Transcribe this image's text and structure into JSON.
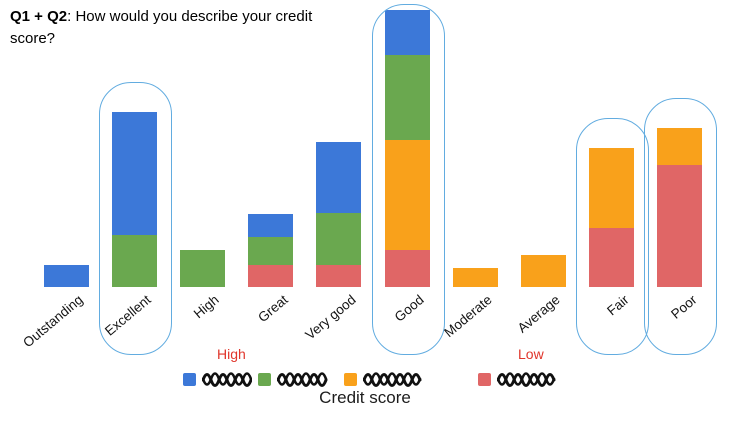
{
  "title": {
    "bold": "Q1 + Q2",
    "rest": ": How would you describe your credit score?"
  },
  "annotations": {
    "high_label": "High",
    "low_label": "Low",
    "annotation_color": "#e0352b"
  },
  "axis": {
    "x_title": "Credit score"
  },
  "chart_data": {
    "type": "bar",
    "stacked": true,
    "title": "Q1 + Q2: How would you describe your credit score?",
    "xlabel": "Credit score",
    "ylabel": "",
    "y_axis_shown": false,
    "values_unit": "relative bar height (no y-axis ticks visible in screenshot)",
    "categories": [
      "Outstanding",
      "Excellent",
      "High",
      "Great",
      "Very good",
      "Good",
      "Moderate",
      "Average",
      "Fair",
      "Poor"
    ],
    "series": [
      {
        "name": "series-red (legend label scribbled out)",
        "color": "#E06666",
        "values": [
          0,
          0,
          0,
          22,
          22,
          37,
          0,
          0,
          59,
          122
        ]
      },
      {
        "name": "series-orange (legend label scribbled out)",
        "color": "#F9A11B",
        "values": [
          0,
          0,
          0,
          0,
          0,
          110,
          19,
          32,
          80,
          37
        ]
      },
      {
        "name": "series-green (legend label scribbled out)",
        "color": "#6AA84F",
        "values": [
          0,
          52,
          37,
          28,
          52,
          85,
          0,
          0,
          0,
          0
        ]
      },
      {
        "name": "series-blue (legend label scribbled out)",
        "color": "#3C78D8",
        "values": [
          22,
          123,
          0,
          23,
          71,
          45,
          0,
          0,
          0,
          0
        ]
      }
    ],
    "stack_order_bottom_to_top": [
      "red",
      "orange",
      "green",
      "blue"
    ],
    "legend_position": "bottom",
    "legend": [
      {
        "swatch_color": "#3C78D8",
        "label": "",
        "label_scribbled_out": true
      },
      {
        "swatch_color": "#6AA84F",
        "label": "",
        "label_scribbled_out": true
      },
      {
        "swatch_color": "#F9A11B",
        "label": "",
        "label_scribbled_out": true
      },
      {
        "swatch_color": "#E06666",
        "label": "",
        "label_scribbled_out": true
      }
    ],
    "highlighted_categories": [
      "Excellent",
      "Good",
      "Fair",
      "Poor"
    ],
    "highlight_outline_color": "#62ACE0"
  }
}
